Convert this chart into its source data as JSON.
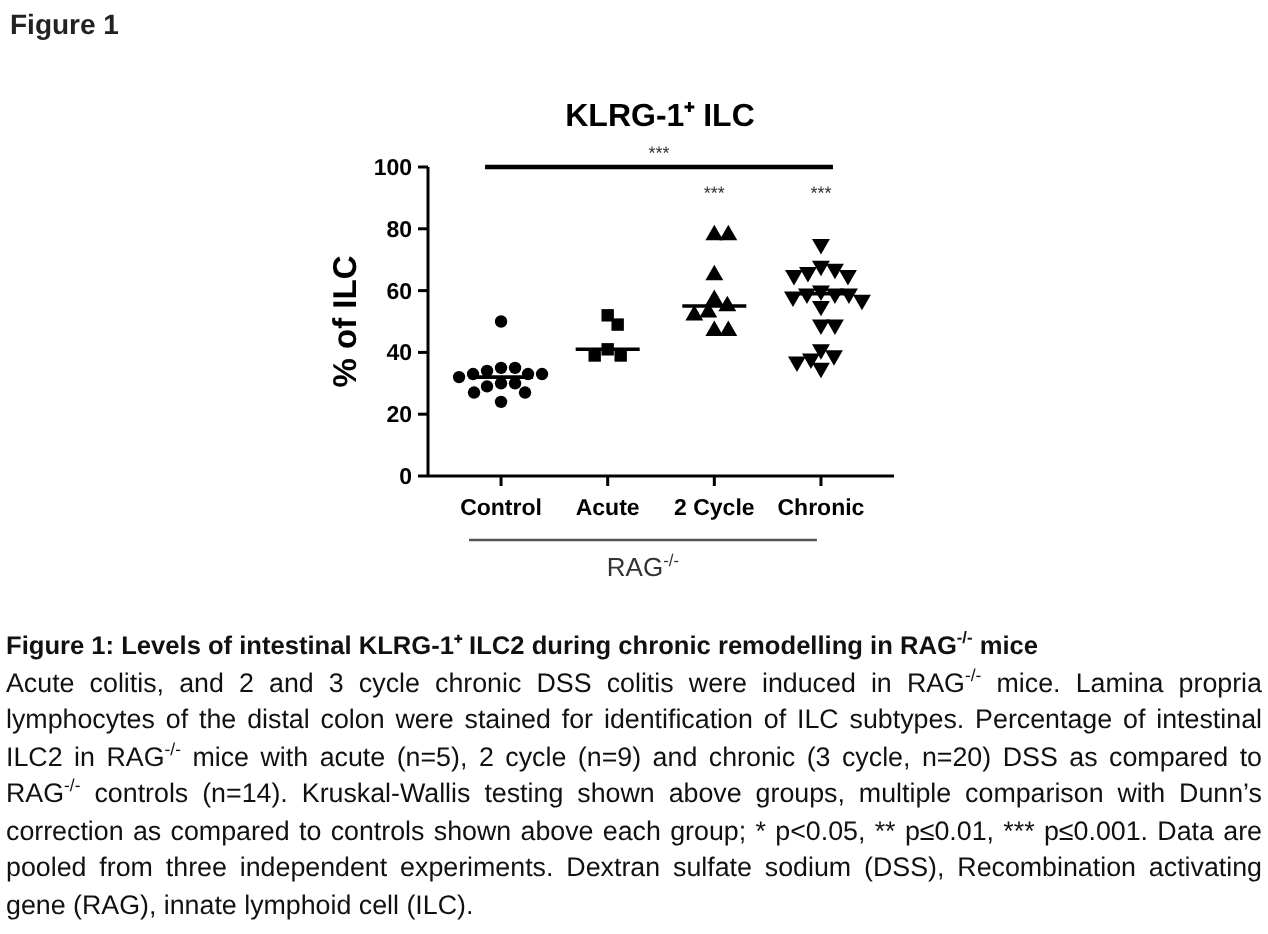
{
  "chart_data": {
    "type": "scatter",
    "title": "KLRG-1⁺ ILC",
    "xlabel": "RAG$^{-/-}$",
    "ylabel": "% of ILC",
    "categories": [
      "Control",
      "Acute",
      "2 Cycle",
      "Chronic"
    ],
    "ylim": [
      0,
      100
    ],
    "yticks": [
      0,
      20,
      40,
      60,
      80,
      100
    ],
    "series": [
      {
        "color": "#000000",
        "marker": "circle",
        "x": [
          "Control",
          "Control",
          "Control",
          "Control",
          "Control",
          "Control",
          "Control",
          "Control",
          "Control",
          "Control",
          "Control",
          "Control",
          "Control",
          "Control"
        ],
        "values": [
          50,
          35,
          35,
          34,
          33,
          33,
          33,
          32,
          30,
          30,
          29,
          27,
          27,
          24
        ]
      },
      {
        "color": "#000000",
        "marker": "square",
        "x": [
          "Acute",
          "Acute",
          "Acute",
          "Acute",
          "Acute"
        ],
        "values": [
          52,
          49,
          41,
          39,
          39
        ]
      },
      {
        "color": "#000000",
        "marker": "triangle",
        "x": [
          "2 Cycle",
          "2 Cycle",
          "2 Cycle",
          "2 Cycle",
          "2 Cycle",
          "2 Cycle",
          "2 Cycle",
          "2 Cycle",
          "2 Cycle"
        ],
        "values": [
          78,
          78,
          65,
          57,
          55,
          53,
          52,
          47,
          47
        ]
      },
      {
        "color": "#000000",
        "marker": "triangle-down",
        "x": [
          "Chronic",
          "Chronic",
          "Chronic",
          "Chronic",
          "Chronic",
          "Chronic",
          "Chronic",
          "Chronic",
          "Chronic",
          "Chronic",
          "Chronic",
          "Chronic",
          "Chronic",
          "Chronic",
          "Chronic",
          "Chronic",
          "Chronic",
          "Chronic",
          "Chronic",
          "Chronic"
        ],
        "values": [
          75,
          68,
          67,
          66,
          65,
          65,
          60,
          59,
          59,
          59,
          58,
          57,
          55,
          49,
          49,
          41,
          39,
          38,
          37,
          35
        ]
      }
    ],
    "ref_lines": [
      {
        "axis": "y",
        "value": 32,
        "color": "#000000"
      },
      {
        "axis": "y",
        "value": 41,
        "color": "#000000"
      },
      {
        "axis": "y",
        "value": 55,
        "color": "#000000"
      },
      {
        "axis": "y",
        "value": 59,
        "color": "#000000"
      }
    ],
    "annotations": [
      "Figure 1",
      "***",
      "***",
      "***",
      "Figure 1: Levels of intestinal KLRG-1⁺ ILC2 during chronic remodelling in RAG$^{-/-}$ mice",
      "Acute colitis, and 2 and 3 cycle chronic DSS colitis were induced in RAG$^{-/-}$ mice. Lamina propria lymphocytes of the distal colon were stained for identification of ILC subtypes. Percentage of intestinal ILC2 in RAG$^{-/-}$ mice with acute (n=5), 2 cycle (n=9) and chronic (3 cycle, n=20) DSS as compared to RAG$^{-/-}$ controls (n=14). Kruskal-Wallis testing shown above groups, multiple comparison with Dunn’s correction as compared to controls shown above each group; * p<0.05, ** p≤0.01, *** p≤0.001. Data are pooled from three independent experiments. Dextran sulfate sodium (DSS), Recombination activating gene (RAG), innate lymphoid cell (ILC)."
    ]
  }
}
